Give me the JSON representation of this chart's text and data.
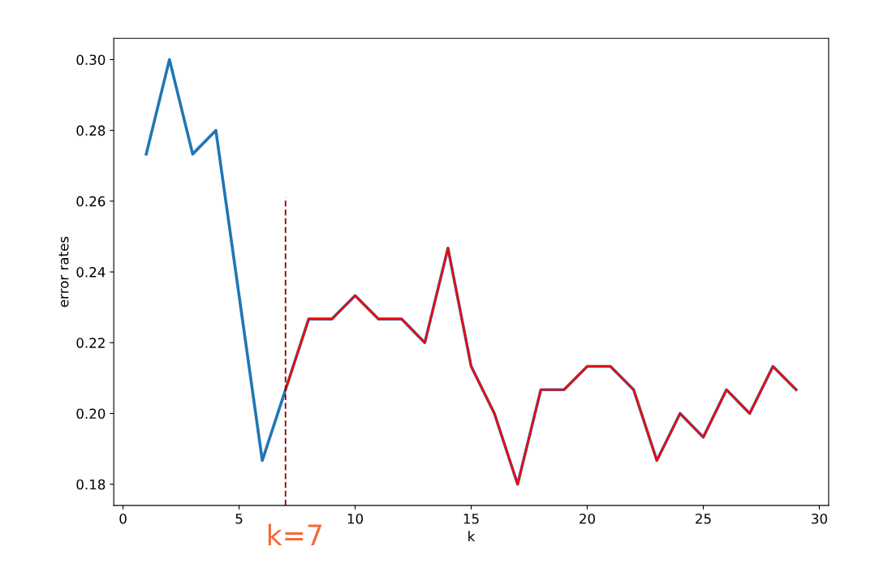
{
  "chart_data": {
    "type": "line",
    "xlabel": "k",
    "ylabel": "error rates",
    "x": [
      1,
      2,
      3,
      4,
      5,
      6,
      7,
      8,
      9,
      10,
      11,
      12,
      13,
      14,
      15,
      16,
      17,
      18,
      19,
      20,
      21,
      22,
      23,
      24,
      25,
      26,
      27,
      28,
      29
    ],
    "series": [
      {
        "color": "#1f77b4",
        "values": [
          0.2733,
          0.3,
          0.2733,
          0.28,
          0.2333,
          0.1867,
          0.2067,
          0.2267,
          0.2267,
          0.2333,
          0.2267,
          0.2267,
          0.22,
          0.2467,
          0.2133,
          0.2,
          0.18,
          0.2067,
          0.2067,
          0.2133,
          0.2133,
          0.2067,
          0.1867,
          0.2,
          0.1933,
          0.2067,
          0.2,
          0.2133,
          0.2067
        ]
      },
      {
        "color": "#ff0000",
        "x": [
          7,
          8,
          9,
          10,
          11,
          12,
          13,
          14,
          15,
          16,
          17,
          18,
          19,
          20,
          21,
          22,
          23,
          24,
          25,
          26,
          27,
          28,
          29
        ],
        "values": [
          0.2067,
          0.2267,
          0.2267,
          0.2333,
          0.2267,
          0.2267,
          0.22,
          0.2467,
          0.2133,
          0.2,
          0.18,
          0.2067,
          0.2067,
          0.2133,
          0.2133,
          0.2067,
          0.1867,
          0.2,
          0.1933,
          0.2067,
          0.2,
          0.2133,
          0.2067
        ]
      },
      {
        "color": "#8b0000",
        "line_style": "dashed",
        "x": [
          7,
          7
        ],
        "values": [
          0.174,
          0.261
        ]
      }
    ],
    "annotations": [
      "k=7"
    ],
    "xlim": [
      -0.4,
      30.4
    ],
    "ylim": [
      0.174,
      0.306
    ],
    "xticks": [
      0,
      5,
      10,
      15,
      20,
      25,
      30
    ],
    "yticks": [
      {
        "value": 0.18,
        "label": "0.18"
      },
      {
        "value": 0.2,
        "label": "0.20"
      },
      {
        "value": 0.22,
        "label": "0.22"
      },
      {
        "value": 0.24,
        "label": "0.24"
      },
      {
        "value": 0.26,
        "label": "0.26"
      },
      {
        "value": 0.28,
        "label": "0.28"
      },
      {
        "value": 0.3,
        "label": "0.30"
      }
    ],
    "grid": false,
    "legend": false
  }
}
